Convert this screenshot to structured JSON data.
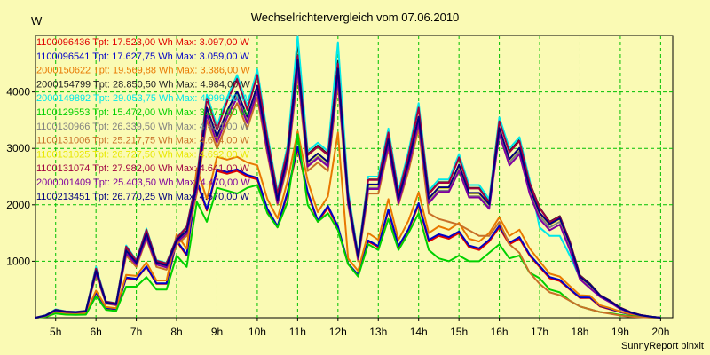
{
  "chart_data": {
    "type": "line",
    "title": "Wechselrichtervergleich vom 07.06.2010",
    "ylabel": "W",
    "xlabel": "",
    "footer": "SunnyReport pinxit",
    "x_ticks": [
      "5h",
      "6h",
      "7h",
      "8h",
      "9h",
      "10h",
      "11h",
      "12h",
      "13h",
      "14h",
      "15h",
      "16h",
      "17h",
      "18h",
      "19h",
      "20h"
    ],
    "y_ticks": [
      1000,
      2000,
      3000,
      4000
    ],
    "xlim": [
      4.5,
      20.3
    ],
    "ylim": [
      0,
      5000
    ],
    "grid": true,
    "legend_position": "top-left",
    "x": [
      4.5,
      4.75,
      5.0,
      5.25,
      5.5,
      5.75,
      6.0,
      6.25,
      6.5,
      6.75,
      7.0,
      7.25,
      7.5,
      7.75,
      8.0,
      8.25,
      8.5,
      8.75,
      9.0,
      9.25,
      9.5,
      9.75,
      10.0,
      10.25,
      10.5,
      10.75,
      11.0,
      11.25,
      11.5,
      11.75,
      12.0,
      12.25,
      12.5,
      12.75,
      13.0,
      13.25,
      13.5,
      13.75,
      14.0,
      14.25,
      14.5,
      14.75,
      15.0,
      15.25,
      15.5,
      15.75,
      16.0,
      16.25,
      16.5,
      16.75,
      17.0,
      17.25,
      17.5,
      17.75,
      18.0,
      18.25,
      18.5,
      18.75,
      19.0,
      19.25,
      19.5,
      19.75,
      20.0
    ],
    "series": [
      {
        "name": "1100096436 Tpt: 17.523,00 Wh Max: 3.097,00 W",
        "color": "#e00000",
        "values": [
          0,
          20,
          90,
          70,
          60,
          70,
          440,
          170,
          150,
          700,
          680,
          900,
          600,
          600,
          1350,
          1100,
          2400,
          1900,
          2600,
          2550,
          2600,
          2500,
          2450,
          1900,
          1600,
          2200,
          3000,
          2200,
          1700,
          1950,
          1600,
          950,
          750,
          1350,
          1250,
          1900,
          1250,
          1550,
          2000,
          1350,
          1450,
          1400,
          1500,
          1250,
          1200,
          1350,
          1600,
          1300,
          1400,
          1100,
          900,
          700,
          650,
          500,
          350,
          350,
          200,
          150,
          100,
          60,
          30,
          15,
          0
        ]
      },
      {
        "name": "1100096541 Tpt: 17.627,75 Wh Max: 3.059,00 W",
        "color": "#0000c8",
        "values": [
          0,
          22,
          95,
          75,
          65,
          75,
          450,
          175,
          155,
          710,
          690,
          910,
          610,
          610,
          1370,
          1120,
          2430,
          1920,
          2630,
          2580,
          2630,
          2530,
          2480,
          1930,
          1620,
          2230,
          3040,
          2230,
          1720,
          1980,
          1620,
          960,
          760,
          1370,
          1270,
          1920,
          1270,
          1570,
          2030,
          1380,
          1480,
          1430,
          1530,
          1280,
          1230,
          1380,
          1630,
          1330,
          1430,
          1120,
          920,
          720,
          670,
          510,
          360,
          360,
          210,
          155,
          100,
          60,
          30,
          15,
          0
        ]
      },
      {
        "name": "2000150622 Tpt: 19.569,88 Wh Max: 3.386,00 W",
        "color": "#e87800",
        "values": [
          0,
          25,
          100,
          80,
          70,
          80,
          480,
          190,
          170,
          760,
          740,
          980,
          660,
          660,
          1480,
          1220,
          2650,
          2100,
          2850,
          2800,
          2850,
          2750,
          2700,
          2100,
          1760,
          2420,
          3300,
          2420,
          1870,
          2150,
          3280,
          1050,
          830,
          1500,
          1380,
          2100,
          1380,
          1720,
          2220,
          1500,
          1620,
          1560,
          1680,
          1400,
          1350,
          1500,
          1780,
          1450,
          1560,
          1230,
          1000,
          780,
          730,
          560,
          400,
          390,
          220,
          170,
          110,
          65,
          30,
          15,
          0
        ]
      },
      {
        "name": "2000154799 Tpt: 28.850,50 Wh Max: 4.984,00 W",
        "color": "#202020",
        "values": [
          0,
          40,
          140,
          110,
          100,
          120,
          880,
          280,
          250,
          1250,
          1000,
          1550,
          1000,
          950,
          1400,
          1600,
          2450,
          3900,
          3350,
          3850,
          4250,
          3700,
          4350,
          3200,
          2200,
          3000,
          4900,
          2900,
          3050,
          2900,
          4550,
          2200,
          1100,
          2450,
          2450,
          3300,
          2200,
          2900,
          3750,
          2200,
          2400,
          2400,
          2850,
          2300,
          2300,
          2050,
          3500,
          2950,
          3150,
          2400,
          1950,
          1700,
          1800,
          1350,
          750,
          600,
          400,
          300,
          180,
          100,
          50,
          20,
          0
        ]
      },
      {
        "name": "2000149892 Tpt: 29.053,75 Wh Max: 4.999,00 W",
        "color": "#00e8e8",
        "values": [
          0,
          45,
          150,
          115,
          105,
          125,
          900,
          290,
          260,
          1280,
          1020,
          1580,
          1020,
          970,
          1420,
          1620,
          2480,
          3950,
          3400,
          3900,
          4300,
          3750,
          4400,
          3250,
          2230,
          3050,
          4990,
          2950,
          3100,
          2950,
          4880,
          2250,
          1120,
          2500,
          2500,
          3350,
          2250,
          2950,
          3800,
          2250,
          2450,
          2450,
          2900,
          2350,
          2350,
          2100,
          3550,
          3000,
          3200,
          2450,
          1600,
          1450,
          1450,
          1100,
          700,
          550,
          380,
          280,
          170,
          95,
          45,
          20,
          0
        ]
      },
      {
        "name": "1100129553 Tpt: 15.472,00 Wh Max: 3.271,00 W",
        "color": "#00d000",
        "values": [
          0,
          15,
          75,
          55,
          50,
          55,
          380,
          140,
          120,
          550,
          550,
          720,
          500,
          500,
          1100,
          900,
          2050,
          1700,
          2300,
          2250,
          2200,
          2300,
          2350,
          1850,
          1600,
          2050,
          3250,
          2000,
          1700,
          1850,
          1550,
          950,
          730,
          1300,
          1200,
          1750,
          1200,
          1500,
          1850,
          1200,
          1050,
          1000,
          1100,
          1000,
          1000,
          1150,
          1300,
          1050,
          1100,
          800,
          700,
          500,
          450,
          300,
          200,
          150,
          100,
          80,
          50,
          30,
          15,
          5,
          0
        ]
      },
      {
        "name": "1100130966 Tpt: 26.339,50 Wh Max: 4.494,00 W",
        "color": "#808080",
        "values": [
          0,
          35,
          130,
          100,
          95,
          110,
          800,
          260,
          230,
          1150,
          950,
          1450,
          950,
          900,
          1350,
          1500,
          2300,
          3650,
          3150,
          3600,
          3950,
          3500,
          4050,
          3000,
          2050,
          2800,
          4450,
          2700,
          2850,
          2700,
          4300,
          2050,
          1050,
          2300,
          2300,
          3100,
          2050,
          2700,
          3500,
          2050,
          2250,
          2250,
          2650,
          2150,
          2150,
          1950,
          3300,
          2750,
          2950,
          2250,
          1800,
          1600,
          1700,
          1250,
          700,
          550,
          380,
          280,
          160,
          90,
          45,
          20,
          0
        ]
      },
      {
        "name": "1100131006 Tpt: 25.217,75 Wh Max: 4.604,00 W",
        "color": "#c87028",
        "values": [
          0,
          30,
          120,
          95,
          90,
          105,
          760,
          250,
          220,
          1100,
          900,
          1400,
          900,
          850,
          1300,
          1450,
          2200,
          3500,
          3000,
          3450,
          3800,
          3350,
          3900,
          2900,
          2000,
          2700,
          4300,
          2600,
          2750,
          2600,
          4150,
          2000,
          1000,
          2200,
          2200,
          3000,
          2000,
          2600,
          3350,
          1850,
          1750,
          1700,
          1650,
          1550,
          1450,
          1450,
          1700,
          1300,
          1150,
          800,
          600,
          450,
          400,
          300,
          200,
          150,
          100,
          70,
          40,
          20,
          10,
          5,
          0
        ]
      },
      {
        "name": "1100131025 Tpt: 26.727,50 Wh Max: 4.692,00 W",
        "color": "#e8e800",
        "values": [
          0,
          38,
          135,
          105,
          98,
          115,
          820,
          270,
          240,
          1180,
          970,
          1480,
          970,
          920,
          1370,
          1530,
          2350,
          3700,
          3200,
          3650,
          4000,
          3550,
          4100,
          3050,
          2080,
          2850,
          4600,
          2750,
          2900,
          2750,
          4400,
          2100,
          1070,
          2350,
          2350,
          3150,
          2100,
          2750,
          3550,
          2100,
          2300,
          2300,
          2700,
          2200,
          2200,
          2000,
          3350,
          2800,
          3000,
          2300,
          1850,
          1650,
          1750,
          1300,
          720,
          580,
          390,
          290,
          170,
          95,
          45,
          20,
          0
        ]
      },
      {
        "name": "1100131074 Tpt: 27.982,00 Wh Max: 4.641,00 W",
        "color": "#a00040",
        "values": [
          0,
          42,
          142,
          112,
          102,
          122,
          870,
          285,
          255,
          1260,
          1010,
          1560,
          1010,
          960,
          1410,
          1610,
          2460,
          3880,
          3330,
          3830,
          4230,
          3680,
          4300,
          3180,
          2190,
          2980,
          4640,
          2880,
          3030,
          2880,
          4500,
          2180,
          1090,
          2440,
          2440,
          3280,
          2190,
          2880,
          3720,
          2190,
          2390,
          2390,
          2840,
          2290,
          2290,
          2040,
          3480,
          2930,
          3130,
          2390,
          1940,
          1690,
          1790,
          1340,
          740,
          590,
          395,
          295,
          178,
          98,
          48,
          20,
          0
        ]
      },
      {
        "name": "2000001409 Tpt: 25.403,50 Wh Max: 4.470,00 W",
        "color": "#8000a0",
        "values": [
          0,
          36,
          128,
          102,
          94,
          112,
          790,
          258,
          228,
          1140,
          940,
          1430,
          940,
          890,
          1340,
          1490,
          2280,
          3600,
          3100,
          3550,
          3900,
          3450,
          4000,
          2950,
          2030,
          2780,
          4400,
          2680,
          2830,
          2680,
          4250,
          2030,
          1040,
          2280,
          2280,
          3050,
          2030,
          2680,
          3450,
          2030,
          2230,
          2230,
          2600,
          2130,
          2130,
          1930,
          3250,
          2700,
          2900,
          2200,
          1750,
          1550,
          1650,
          1200,
          680,
          520,
          370,
          270,
          155,
          88,
          42,
          18,
          0
        ]
      },
      {
        "name": "1100213451 Tpt: 26.770,25 Wh Max: 4.570,00 W",
        "color": "#000080",
        "values": [
          0,
          39,
          137,
          107,
          99,
          117,
          830,
          272,
          242,
          1190,
          975,
          1490,
          975,
          925,
          1375,
          1540,
          2360,
          3720,
          3210,
          3660,
          4010,
          3560,
          4110,
          3060,
          2090,
          2860,
          4560,
          2760,
          2910,
          2760,
          4410,
          2110,
          1075,
          2360,
          2360,
          3160,
          2110,
          2760,
          3560,
          2110,
          2310,
          2310,
          2710,
          2210,
          2210,
          2010,
          3360,
          2810,
          3010,
          2310,
          1860,
          1660,
          1760,
          1310,
          725,
          585,
          392,
          292,
          172,
          96,
          46,
          20,
          0
        ]
      }
    ]
  }
}
